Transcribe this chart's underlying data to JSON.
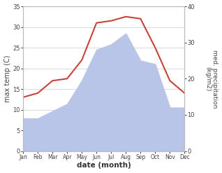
{
  "months": [
    "Jan",
    "Feb",
    "Mar",
    "Apr",
    "May",
    "Jun",
    "Jul",
    "Aug",
    "Sep",
    "Oct",
    "Nov",
    "Dec"
  ],
  "temperature": [
    13.0,
    14.0,
    17.0,
    17.5,
    22.0,
    31.0,
    31.5,
    32.5,
    32.0,
    25.0,
    17.0,
    14.0
  ],
  "precipitation_raw": [
    9.0,
    9.0,
    11.0,
    13.0,
    19.5,
    28.0,
    29.5,
    32.5,
    25.0,
    24.0,
    12.0,
    12.0
  ],
  "temp_color": "#c8423a",
  "precip_color": "#b8c4e8",
  "temp_ylim": [
    0,
    35
  ],
  "precip_ylim": [
    0,
    40
  ],
  "temp_yticks": [
    0,
    5,
    10,
    15,
    20,
    25,
    30,
    35
  ],
  "precip_yticks": [
    0,
    10,
    20,
    30,
    40
  ],
  "ylabel_left": "max temp (C)",
  "ylabel_right": "med. precipitation\n(kg/m2)",
  "xlabel": "date (month)",
  "bg_color": "#ffffff",
  "spine_color": "#bbbbbb",
  "grid_color": "#cccccc",
  "label_color": "#444444",
  "tick_color": "#444444",
  "temp_scale_max": 35,
  "precip_scale_max": 40
}
